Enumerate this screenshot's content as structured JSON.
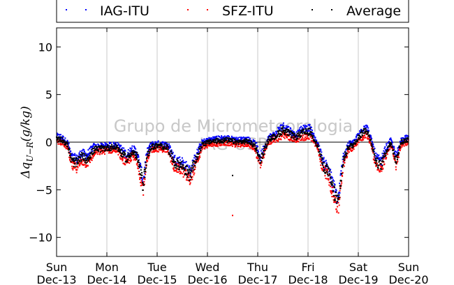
{
  "chart_data": {
    "type": "scatter",
    "title": "",
    "xlabel": "",
    "ylabel": "Δq_{U−R}(g/kg)",
    "ylabel_display": {
      "main": "Δq",
      "sub": "U−R",
      "tail": "(g/kg)"
    },
    "ylim": [
      -12,
      12
    ],
    "yticks": [
      10,
      5,
      0,
      -5,
      -10
    ],
    "ytick_labels": [
      "10",
      "5",
      "0",
      "−5",
      "−10"
    ],
    "xlim_days": [
      0,
      7
    ],
    "xtick_labels": [
      {
        "day": "Sun",
        "date": "Dec-13"
      },
      {
        "day": "Mon",
        "date": "Dec-14"
      },
      {
        "day": "Tue",
        "date": "Dec-15"
      },
      {
        "day": "Wed",
        "date": "Dec-16"
      },
      {
        "day": "Thu",
        "date": "Dec-17"
      },
      {
        "day": "Fri",
        "date": "Dec-18"
      },
      {
        "day": "Sat",
        "date": "Dec-19"
      },
      {
        "day": "Sun",
        "date": "Dec-20"
      }
    ],
    "grid": "vertical",
    "zero_line": true,
    "legend_position": "top (above plot)",
    "watermark": [
      "Grupo de Micrometeorologia",
      "IAG-USP"
    ],
    "series": [
      {
        "name": "IAG-ITU",
        "color": "#0000ff",
        "offset": 0.25
      },
      {
        "name": "SFZ-ITU",
        "color": "#ff0000",
        "offset": -0.3
      },
      {
        "name": "Average",
        "color": "#000000",
        "offset": 0
      }
    ],
    "profile_points": [
      [
        0.0,
        0.4
      ],
      [
        0.1,
        0.3
      ],
      [
        0.22,
        -0.3
      ],
      [
        0.3,
        -2.0
      ],
      [
        0.4,
        -2.2
      ],
      [
        0.5,
        -1.5
      ],
      [
        0.6,
        -1.8
      ],
      [
        0.75,
        -0.8
      ],
      [
        1.0,
        -0.6
      ],
      [
        1.2,
        -0.5
      ],
      [
        1.3,
        -1.2
      ],
      [
        1.4,
        -1.8
      ],
      [
        1.5,
        -1.0
      ],
      [
        1.6,
        -1.5
      ],
      [
        1.72,
        -4.5
      ],
      [
        1.8,
        -1.5
      ],
      [
        1.88,
        -0.5
      ],
      [
        2.0,
        -0.4
      ],
      [
        2.2,
        -0.5
      ],
      [
        2.35,
        -2.2
      ],
      [
        2.5,
        -2.5
      ],
      [
        2.65,
        -3.5
      ],
      [
        2.8,
        -1.5
      ],
      [
        2.9,
        -0.2
      ],
      [
        3.1,
        0.1
      ],
      [
        3.4,
        0.2
      ],
      [
        3.6,
        0.0
      ],
      [
        3.8,
        0.1
      ],
      [
        3.95,
        -0.4
      ],
      [
        4.05,
        -2.0
      ],
      [
        4.12,
        -1.0
      ],
      [
        4.22,
        0.3
      ],
      [
        4.35,
        0.6
      ],
      [
        4.5,
        1.3
      ],
      [
        4.6,
        1.0
      ],
      [
        4.75,
        0.5
      ],
      [
        4.9,
        1.0
      ],
      [
        5.05,
        1.1
      ],
      [
        5.2,
        -0.5
      ],
      [
        5.3,
        -2.5
      ],
      [
        5.4,
        -3.0
      ],
      [
        5.5,
        -5.0
      ],
      [
        5.6,
        -6.5
      ],
      [
        5.7,
        -2.0
      ],
      [
        5.8,
        -0.5
      ],
      [
        5.9,
        -0.3
      ],
      [
        6.0,
        0.5
      ],
      [
        6.15,
        1.4
      ],
      [
        6.25,
        0.2
      ],
      [
        6.35,
        -2.0
      ],
      [
        6.45,
        -2.5
      ],
      [
        6.55,
        -1.0
      ],
      [
        6.65,
        0.0
      ],
      [
        6.75,
        -2.0
      ],
      [
        6.85,
        0.0
      ],
      [
        7.0,
        0.3
      ]
    ],
    "outliers": [
      {
        "x": 3.5,
        "y": -3.5,
        "series": "Average"
      },
      {
        "x": 3.5,
        "y": -7.7,
        "series": "SFZ-ITU"
      }
    ]
  }
}
